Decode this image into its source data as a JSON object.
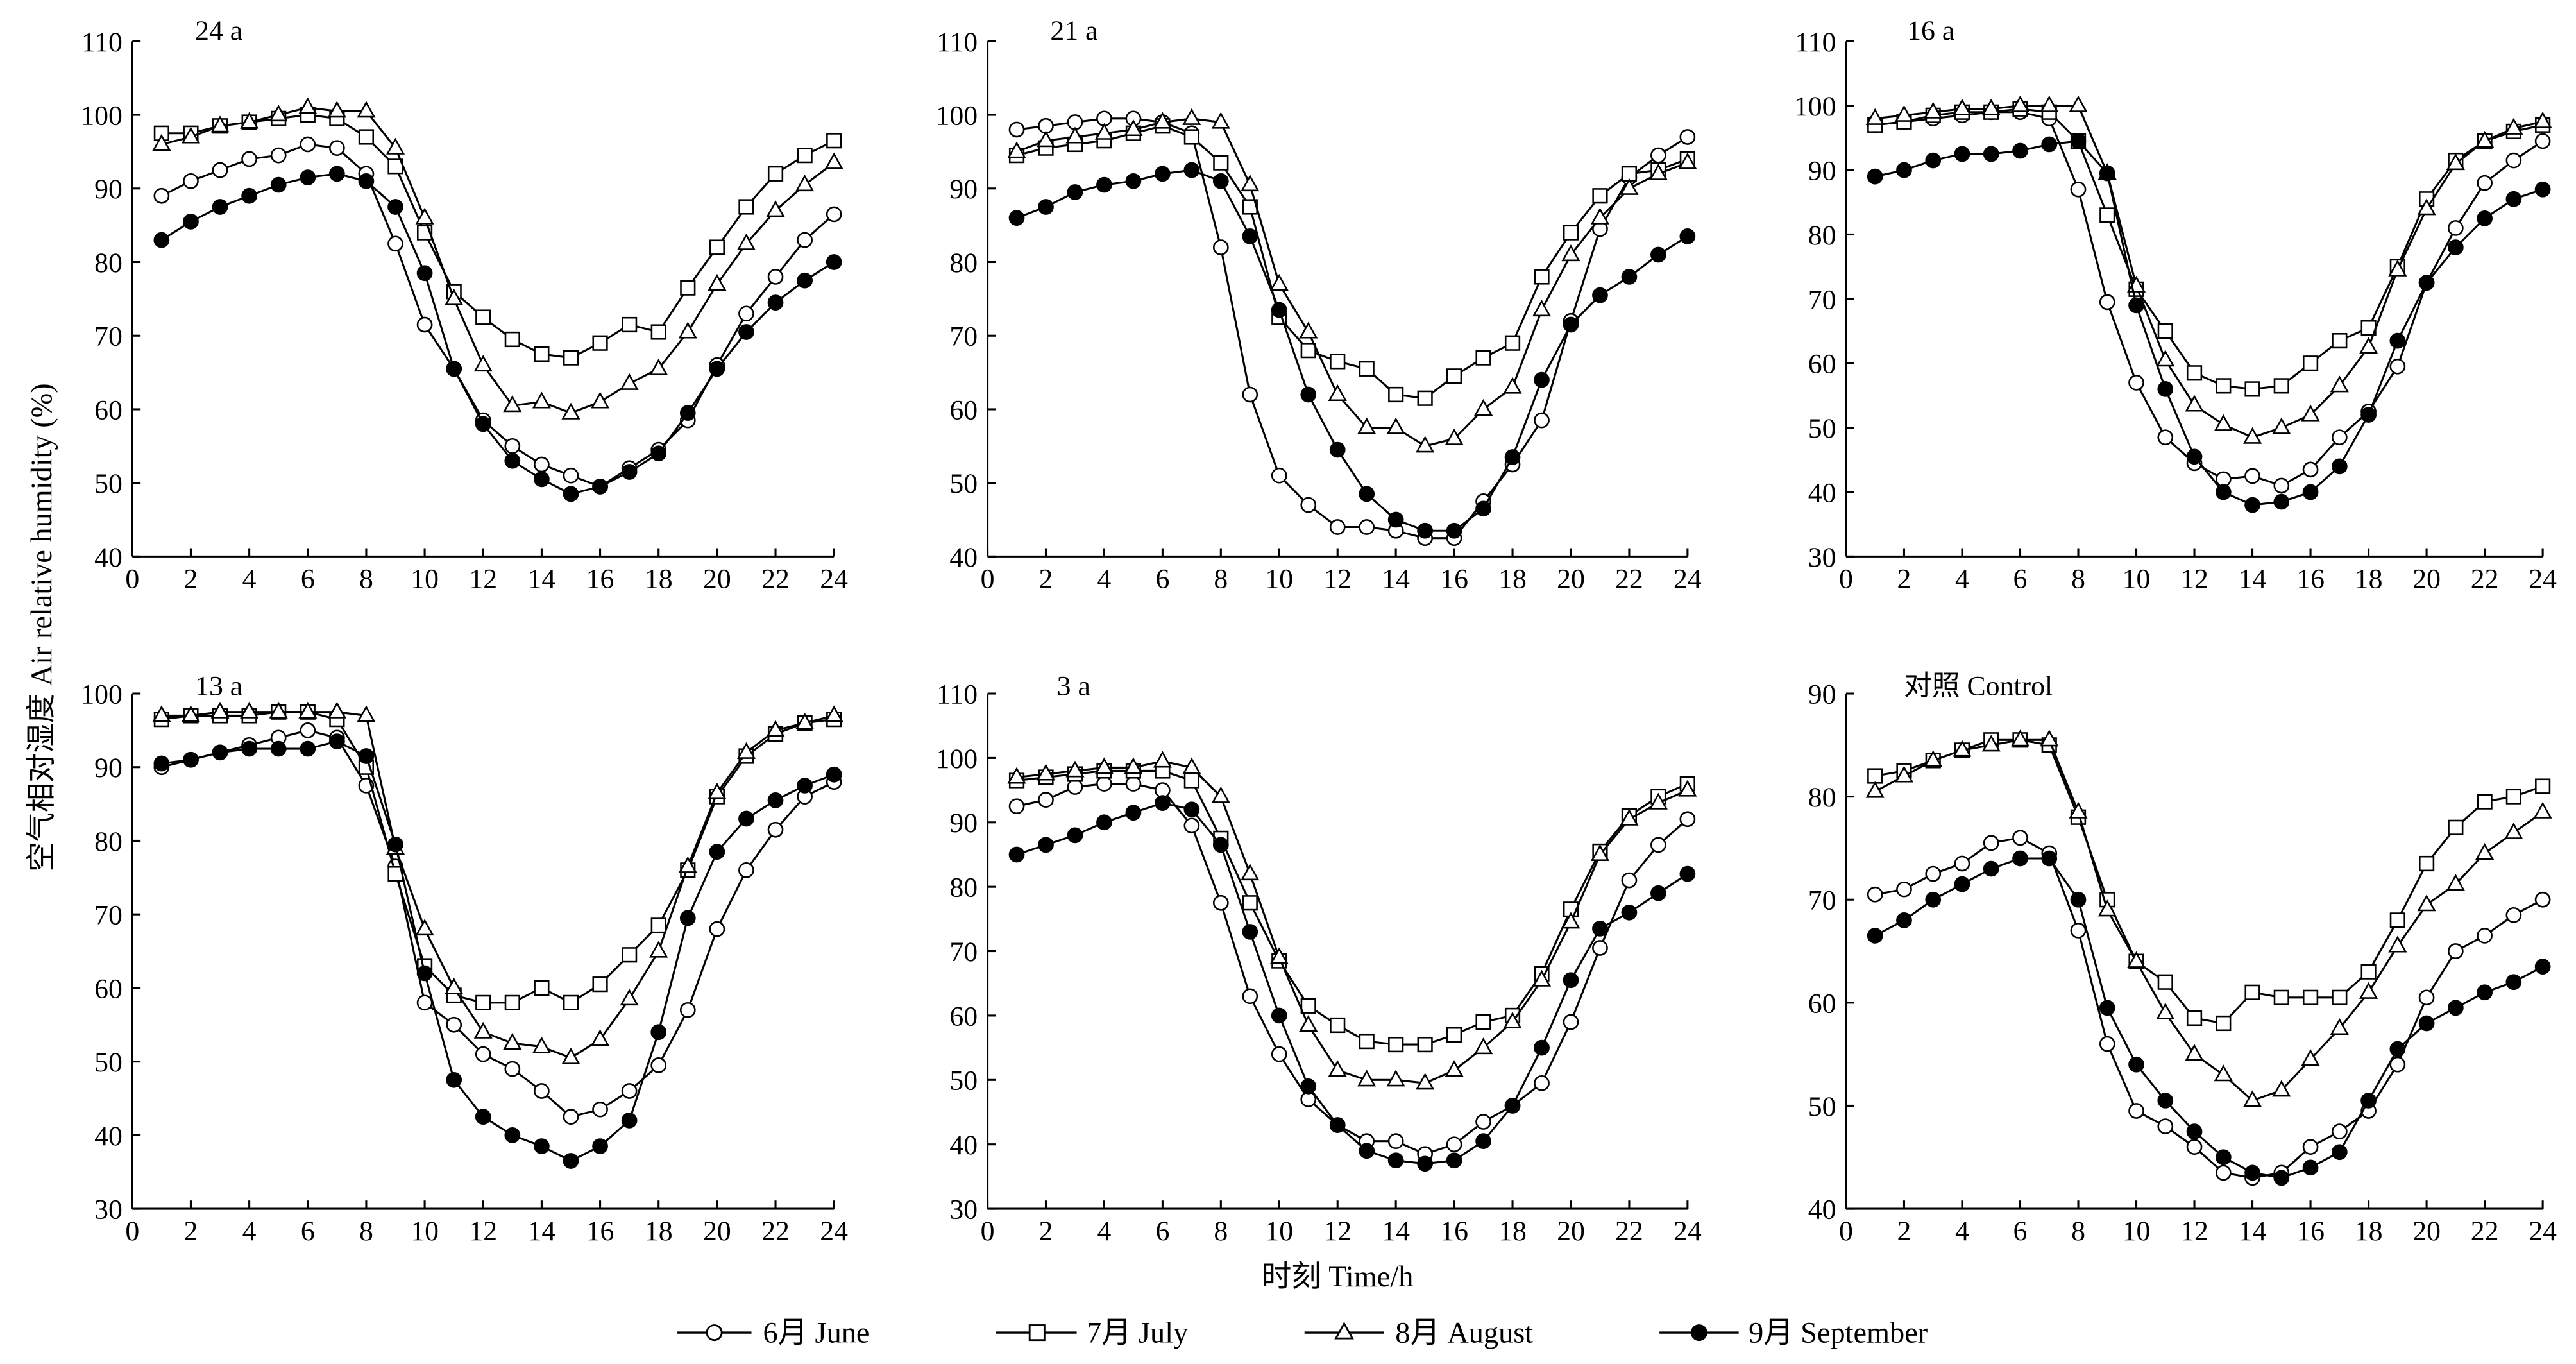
{
  "figure": {
    "xlabel": "时刻 Time/h",
    "ylabel": "空气相对湿度 Air relative humidity (%)",
    "legend_position": "bottom",
    "grid": false,
    "line_color": "#000000"
  },
  "chart_data": [
    {
      "type": "line",
      "title": "24 a",
      "x": [
        1,
        2,
        3,
        4,
        5,
        6,
        7,
        8,
        9,
        10,
        11,
        12,
        13,
        14,
        15,
        16,
        17,
        18,
        19,
        20,
        21,
        22,
        23,
        24
      ],
      "xlim": [
        0,
        24
      ],
      "ylim": [
        40,
        110
      ],
      "xticks": [
        0,
        2,
        4,
        6,
        8,
        10,
        12,
        14,
        16,
        18,
        20,
        22,
        24
      ],
      "yticks": [
        40,
        50,
        60,
        70,
        80,
        90,
        100,
        110
      ],
      "series": [
        {
          "name": "6月 June",
          "marker": "open-circle",
          "values": [
            89,
            91,
            92.5,
            94,
            94.5,
            96,
            95.5,
            92,
            82.5,
            71.5,
            65.5,
            58.5,
            55,
            52.5,
            51,
            49.5,
            52,
            54.5,
            58.5,
            66,
            73,
            78,
            83,
            86.5
          ]
        },
        {
          "name": "7月 July",
          "marker": "open-square",
          "values": [
            97.5,
            97.5,
            98.5,
            99,
            99.5,
            100,
            99.5,
            97,
            93,
            84,
            76,
            72.5,
            69.5,
            67.5,
            67,
            69,
            71.5,
            70.5,
            76.5,
            82,
            87.5,
            92,
            94.5,
            96.5
          ]
        },
        {
          "name": "8月 August",
          "marker": "open-triangle",
          "values": [
            96,
            97,
            98.5,
            99,
            100,
            101,
            100.5,
            100.5,
            95.5,
            86,
            75,
            66,
            60.5,
            61,
            59.5,
            61,
            63.5,
            65.5,
            70.5,
            77,
            82.5,
            87,
            90.5,
            93.5
          ]
        },
        {
          "name": "9月 September",
          "marker": "filled-circle",
          "values": [
            83,
            85.5,
            87.5,
            89,
            90.5,
            91.5,
            92,
            91,
            87.5,
            78.5,
            65.5,
            58,
            53,
            50.5,
            48.5,
            49.5,
            51.5,
            54,
            59.5,
            65.5,
            70.5,
            74.5,
            77.5,
            80
          ]
        }
      ]
    },
    {
      "type": "line",
      "title": "21 a",
      "x": [
        1,
        2,
        3,
        4,
        5,
        6,
        7,
        8,
        9,
        10,
        11,
        12,
        13,
        14,
        15,
        16,
        17,
        18,
        19,
        20,
        21,
        22,
        23,
        24
      ],
      "xlim": [
        0,
        24
      ],
      "ylim": [
        40,
        110
      ],
      "xticks": [
        0,
        2,
        4,
        6,
        8,
        10,
        12,
        14,
        16,
        18,
        20,
        22,
        24
      ],
      "yticks": [
        40,
        50,
        60,
        70,
        80,
        90,
        100,
        110
      ],
      "series": [
        {
          "name": "6月 June",
          "marker": "open-circle",
          "values": [
            98,
            98.5,
            99,
            99.5,
            99.5,
            99,
            97.5,
            82,
            62,
            51,
            47,
            44,
            44,
            43.5,
            42.5,
            42.5,
            47.5,
            52.5,
            58.5,
            72,
            84.5,
            91.5,
            94.5,
            97
          ]
        },
        {
          "name": "7月 July",
          "marker": "open-square",
          "values": [
            94.5,
            95.5,
            96,
            96.5,
            97.5,
            98.5,
            97,
            93.5,
            87.5,
            72.5,
            68,
            66.5,
            65.5,
            62,
            61.5,
            64.5,
            67,
            69,
            78,
            84,
            89,
            92,
            92.5,
            94
          ]
        },
        {
          "name": "8月 August",
          "marker": "open-triangle",
          "values": [
            95,
            96.5,
            97,
            97.5,
            98,
            99,
            99.5,
            99,
            90.5,
            77,
            70.5,
            62,
            57.5,
            57.5,
            55,
            56,
            60,
            63,
            73.5,
            81,
            86,
            90,
            92,
            93.5
          ]
        },
        {
          "name": "9月 September",
          "marker": "filled-circle",
          "values": [
            86,
            87.5,
            89.5,
            90.5,
            91,
            92,
            92.5,
            91,
            83.5,
            73.5,
            62,
            54.5,
            48.5,
            45,
            43.5,
            43.5,
            46.5,
            53.5,
            64,
            71.5,
            75.5,
            78,
            81,
            83.5
          ]
        }
      ]
    },
    {
      "type": "line",
      "title": "16 a",
      "x": [
        1,
        2,
        3,
        4,
        5,
        6,
        7,
        8,
        9,
        10,
        11,
        12,
        13,
        14,
        15,
        16,
        17,
        18,
        19,
        20,
        21,
        22,
        23,
        24
      ],
      "xlim": [
        0,
        24
      ],
      "ylim": [
        30,
        110
      ],
      "xticks": [
        0,
        2,
        4,
        6,
        8,
        10,
        12,
        14,
        16,
        18,
        20,
        22,
        24
      ],
      "yticks": [
        30,
        40,
        50,
        60,
        70,
        80,
        90,
        100,
        110
      ],
      "series": [
        {
          "name": "6月 June",
          "marker": "open-circle",
          "values": [
            97,
            97.5,
            98,
            98.5,
            99,
            99,
            98,
            87,
            69.5,
            57,
            48.5,
            44.5,
            42,
            42.5,
            41,
            43.5,
            48.5,
            52.5,
            59.5,
            72.5,
            81,
            88,
            91.5,
            94.5
          ]
        },
        {
          "name": "7月 July",
          "marker": "open-square",
          "values": [
            97,
            97.5,
            98.5,
            99,
            99,
            99.5,
            99,
            94.5,
            83,
            71.5,
            65,
            58.5,
            56.5,
            56,
            56.5,
            60,
            63.5,
            65.5,
            75,
            85.5,
            91.5,
            94.5,
            96,
            97
          ]
        },
        {
          "name": "8月 August",
          "marker": "open-triangle",
          "values": [
            98,
            98.5,
            99,
            99.5,
            99.5,
            100,
            100,
            100,
            89.5,
            72,
            60.5,
            53.5,
            50.5,
            48.5,
            50,
            52,
            56.5,
            62.5,
            74.5,
            84,
            91,
            94.5,
            96.5,
            97.5
          ]
        },
        {
          "name": "9月 September",
          "marker": "filled-circle",
          "values": [
            89,
            90,
            91.5,
            92.5,
            92.5,
            93,
            94,
            94.5,
            89.5,
            69,
            56,
            45.5,
            40,
            38,
            38.5,
            40,
            44,
            52,
            63.5,
            72.5,
            78,
            82.5,
            85.5,
            87
          ]
        }
      ]
    },
    {
      "type": "line",
      "title": "13 a",
      "x": [
        1,
        2,
        3,
        4,
        5,
        6,
        7,
        8,
        9,
        10,
        11,
        12,
        13,
        14,
        15,
        16,
        17,
        18,
        19,
        20,
        21,
        22,
        23,
        24
      ],
      "xlim": [
        0,
        24
      ],
      "ylim": [
        30,
        100
      ],
      "xticks": [
        0,
        2,
        4,
        6,
        8,
        10,
        12,
        14,
        16,
        18,
        20,
        22,
        24
      ],
      "yticks": [
        30,
        40,
        50,
        60,
        70,
        80,
        90,
        100
      ],
      "series": [
        {
          "name": "6月 June",
          "marker": "open-circle",
          "values": [
            90,
            91,
            92,
            93,
            94,
            95,
            94,
            87.5,
            76.5,
            58,
            55,
            51,
            49,
            46,
            42.5,
            43.5,
            46,
            49.5,
            57,
            68,
            76,
            81.5,
            86,
            88
          ]
        },
        {
          "name": "7月 July",
          "marker": "open-square",
          "values": [
            96.5,
            97,
            97,
            97,
            97.5,
            97.5,
            96.5,
            90,
            75.5,
            63,
            59,
            58,
            58,
            60,
            58,
            60.5,
            64.5,
            68.5,
            76,
            86,
            91.5,
            94.5,
            96,
            96.5
          ]
        },
        {
          "name": "8月 August",
          "marker": "open-triangle",
          "values": [
            97,
            97,
            97.5,
            97.5,
            97.5,
            97.5,
            97.5,
            97,
            79,
            68,
            60,
            54,
            52.5,
            52,
            50.5,
            53,
            58.5,
            65,
            76.5,
            86.5,
            92,
            95,
            96,
            97
          ]
        },
        {
          "name": "9月 September",
          "marker": "filled-circle",
          "values": [
            90.5,
            91,
            92,
            92.5,
            92.5,
            92.5,
            93.5,
            91.5,
            79.5,
            62,
            47.5,
            42.5,
            40,
            38.5,
            36.5,
            38.5,
            42,
            54,
            69.5,
            78.5,
            83,
            85.5,
            87.5,
            89
          ]
        }
      ]
    },
    {
      "type": "line",
      "title": "3 a",
      "x": [
        1,
        2,
        3,
        4,
        5,
        6,
        7,
        8,
        9,
        10,
        11,
        12,
        13,
        14,
        15,
        16,
        17,
        18,
        19,
        20,
        21,
        22,
        23,
        24
      ],
      "xlim": [
        0,
        24
      ],
      "ylim": [
        30,
        110
      ],
      "xticks": [
        0,
        2,
        4,
        6,
        8,
        10,
        12,
        14,
        16,
        18,
        20,
        22,
        24
      ],
      "yticks": [
        30,
        40,
        50,
        60,
        70,
        80,
        90,
        100,
        110
      ],
      "series": [
        {
          "name": "6月 June",
          "marker": "open-circle",
          "values": [
            92.5,
            93.5,
            95.5,
            96,
            96,
            95,
            89.5,
            77.5,
            63,
            54,
            47,
            43,
            40.5,
            40.5,
            38.5,
            40,
            43.5,
            46,
            49.5,
            59,
            70.5,
            81,
            86.5,
            90.5
          ]
        },
        {
          "name": "7月 July",
          "marker": "open-square",
          "values": [
            96.5,
            97,
            97.5,
            98,
            98,
            98,
            96.5,
            87.5,
            77.5,
            68.5,
            61.5,
            58.5,
            56,
            55.5,
            55.5,
            57,
            59,
            60,
            66.5,
            76.5,
            85.5,
            91,
            94,
            96
          ]
        },
        {
          "name": "8月 August",
          "marker": "open-triangle",
          "values": [
            97,
            97.5,
            98,
            98.5,
            98.5,
            99.5,
            98.5,
            94,
            82,
            69,
            58.5,
            51.5,
            50,
            50,
            49.5,
            51.5,
            55,
            59,
            65.5,
            74.5,
            85,
            90.5,
            93,
            95
          ]
        },
        {
          "name": "9月 September",
          "marker": "filled-circle",
          "values": [
            85,
            86.5,
            88,
            90,
            91.5,
            93,
            92,
            86.5,
            73,
            60,
            49,
            43,
            39,
            37.5,
            37,
            37.5,
            40.5,
            46,
            55,
            65.5,
            73.5,
            76,
            79,
            82
          ]
        }
      ]
    },
    {
      "type": "line",
      "title": "对照 Control",
      "x": [
        1,
        2,
        3,
        4,
        5,
        6,
        7,
        8,
        9,
        10,
        11,
        12,
        13,
        14,
        15,
        16,
        17,
        18,
        19,
        20,
        21,
        22,
        23,
        24
      ],
      "xlim": [
        0,
        24
      ],
      "ylim": [
        40,
        90
      ],
      "xticks": [
        0,
        2,
        4,
        6,
        8,
        10,
        12,
        14,
        16,
        18,
        20,
        22,
        24
      ],
      "yticks": [
        40,
        50,
        60,
        70,
        80,
        90
      ],
      "series": [
        {
          "name": "6月 June",
          "marker": "open-circle",
          "values": [
            70.5,
            71,
            72.5,
            73.5,
            75.5,
            76,
            74.5,
            67,
            56,
            49.5,
            48,
            46,
            43.5,
            43,
            43.5,
            46,
            47.5,
            49.5,
            54,
            60.5,
            65,
            66.5,
            68.5,
            70
          ]
        },
        {
          "name": "7月 July",
          "marker": "open-square",
          "values": [
            82,
            82.5,
            83.5,
            84.5,
            85.5,
            85.5,
            85,
            78,
            70,
            64,
            62,
            58.5,
            58,
            61,
            60.5,
            60.5,
            60.5,
            63,
            68,
            73.5,
            77,
            79.5,
            80,
            81
          ]
        },
        {
          "name": "8月 August",
          "marker": "open-triangle",
          "values": [
            80.5,
            82,
            83.5,
            84.5,
            85,
            85.5,
            85.5,
            78.5,
            69,
            64,
            59,
            55,
            53,
            50.5,
            51.5,
            54.5,
            57.5,
            61,
            65.5,
            69.5,
            71.5,
            74.5,
            76.5,
            78.5
          ]
        },
        {
          "name": "9月 September",
          "marker": "filled-circle",
          "values": [
            66.5,
            68,
            70,
            71.5,
            73,
            74,
            74,
            70,
            59.5,
            54,
            50.5,
            47.5,
            45,
            43.5,
            43,
            44,
            45.5,
            50.5,
            55.5,
            58,
            59.5,
            61,
            62,
            63.5
          ]
        }
      ]
    }
  ]
}
